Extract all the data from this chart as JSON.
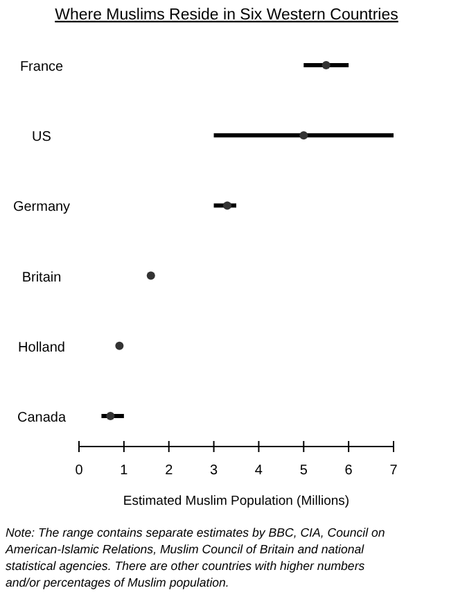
{
  "chart_data": {
    "type": "bar",
    "orientation": "horizontal",
    "title": "Where Muslims Reside in Six Western Countries",
    "xlabel": "Estimated Muslim Population (Millions)",
    "categories": [
      "France",
      "US",
      "Germany",
      "Britain",
      "Holland",
      "Canada"
    ],
    "series": [
      {
        "color": "#000000",
        "values": [
          1.0,
          4.0,
          0.5,
          null,
          null,
          0.5
        ],
        "base": [
          5.0,
          3.0,
          3.0,
          null,
          null,
          0.5
        ]
      },
      {
        "type": "scatter",
        "color": "#333333",
        "values": [
          5.5,
          5.0,
          3.3,
          1.6,
          0.9,
          0.7
        ]
      }
    ],
    "marker": "circle",
    "xlim": [
      0,
      7
    ],
    "xticks": [
      0,
      1,
      2,
      3,
      4,
      5,
      6,
      7
    ],
    "annotations": [
      "Note: The range contains separate estimates by BBC, CIA, Council on American-Islamic Relations, Muslim Council of Britain and national statistical agencies.  There are other countries with higher numbers and/or percentages of Muslim population."
    ]
  }
}
